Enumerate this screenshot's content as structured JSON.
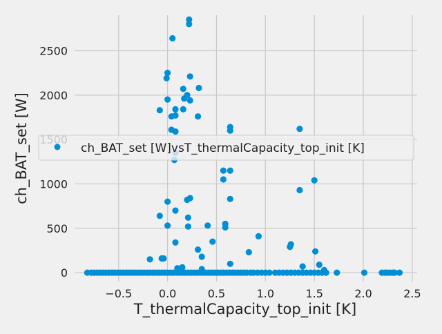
{
  "chart_data": {
    "type": "scatter",
    "xlabel": "T_thermalCapacity_top_init [K]",
    "ylabel": "ch_BAT_set [W]",
    "xlim": [
      -0.95,
      2.55
    ],
    "ylim": [
      -100,
      2900
    ],
    "xticks": [
      -0.5,
      0.0,
      0.5,
      1.0,
      1.5,
      2.0,
      2.5
    ],
    "xtick_labels": [
      "−0.5",
      "0.0",
      "0.5",
      "1.0",
      "1.5",
      "2.0",
      "2.5"
    ],
    "yticks": [
      0,
      500,
      1000,
      1500,
      2000,
      2500
    ],
    "ytick_labels": [
      "0",
      "500",
      "1000",
      "1500",
      "2000",
      "2500"
    ],
    "grid": true,
    "legend_position": "center-right",
    "colors": {
      "marker": "#008fd5",
      "grid": "#cbcbcb",
      "background": "#f0f0f0"
    },
    "series": [
      {
        "name": "ch_BAT_set [W]vsT_thermalCapacity_top_init [K]",
        "points": [
          [
            -0.82,
            0
          ],
          [
            -0.78,
            0
          ],
          [
            -0.75,
            0
          ],
          [
            -0.72,
            0
          ],
          [
            -0.69,
            0
          ],
          [
            -0.66,
            0
          ],
          [
            -0.63,
            0
          ],
          [
            -0.6,
            0
          ],
          [
            -0.57,
            0
          ],
          [
            -0.54,
            0
          ],
          [
            -0.51,
            0
          ],
          [
            -0.48,
            0
          ],
          [
            -0.45,
            0
          ],
          [
            -0.42,
            0
          ],
          [
            -0.39,
            0
          ],
          [
            -0.36,
            0
          ],
          [
            -0.33,
            0
          ],
          [
            -0.3,
            0
          ],
          [
            -0.27,
            0
          ],
          [
            -0.24,
            0
          ],
          [
            -0.21,
            0
          ],
          [
            -0.18,
            0
          ],
          [
            -0.15,
            0
          ],
          [
            -0.12,
            0
          ],
          [
            -0.09,
            0
          ],
          [
            -0.06,
            0
          ],
          [
            -0.03,
            0
          ],
          [
            0.0,
            0
          ],
          [
            0.03,
            0
          ],
          [
            0.06,
            0
          ],
          [
            0.09,
            0
          ],
          [
            0.12,
            0
          ],
          [
            0.15,
            0
          ],
          [
            0.18,
            0
          ],
          [
            0.21,
            0
          ],
          [
            0.24,
            0
          ],
          [
            0.27,
            0
          ],
          [
            0.3,
            0
          ],
          [
            0.33,
            0
          ],
          [
            0.36,
            0
          ],
          [
            0.39,
            0
          ],
          [
            0.42,
            0
          ],
          [
            0.45,
            0
          ],
          [
            0.48,
            0
          ],
          [
            0.51,
            0
          ],
          [
            0.54,
            0
          ],
          [
            0.57,
            0
          ],
          [
            0.6,
            0
          ],
          [
            0.63,
            0
          ],
          [
            0.66,
            0
          ],
          [
            0.69,
            0
          ],
          [
            0.72,
            0
          ],
          [
            0.75,
            0
          ],
          [
            0.78,
            0
          ],
          [
            0.81,
            0
          ],
          [
            0.85,
            0
          ],
          [
            0.88,
            0
          ],
          [
            0.92,
            0
          ],
          [
            0.96,
            0
          ],
          [
            1.0,
            0
          ],
          [
            1.04,
            0
          ],
          [
            1.1,
            0
          ],
          [
            1.14,
            0
          ],
          [
            1.18,
            0
          ],
          [
            1.22,
            0
          ],
          [
            1.26,
            0
          ],
          [
            1.3,
            0
          ],
          [
            1.34,
            0
          ],
          [
            1.38,
            0
          ],
          [
            1.42,
            0
          ],
          [
            1.46,
            0
          ],
          [
            1.5,
            0
          ],
          [
            1.54,
            0
          ],
          [
            1.58,
            0
          ],
          [
            1.62,
            0
          ],
          [
            1.73,
            0
          ],
          [
            2.01,
            0
          ],
          [
            2.19,
            0
          ],
          [
            2.22,
            0
          ],
          [
            2.24,
            0
          ],
          [
            2.27,
            0
          ],
          [
            2.3,
            0
          ],
          [
            2.32,
            0
          ],
          [
            2.37,
            0
          ],
          [
            -0.18,
            150
          ],
          [
            -0.06,
            160
          ],
          [
            -0.04,
            160
          ],
          [
            0.1,
            50
          ],
          [
            0.15,
            60
          ],
          [
            0.35,
            40
          ],
          [
            0.64,
            100
          ],
          [
            1.38,
            70
          ],
          [
            1.55,
            90
          ],
          [
            1.6,
            30
          ],
          [
            -0.08,
            640
          ],
          [
            0.0,
            530
          ],
          [
            0.0,
            800
          ],
          [
            0.08,
            700
          ],
          [
            0.08,
            340
          ],
          [
            0.2,
            820
          ],
          [
            0.21,
            520
          ],
          [
            0.21,
            620
          ],
          [
            0.23,
            840
          ],
          [
            0.31,
            260
          ],
          [
            0.35,
            180
          ],
          [
            0.41,
            530
          ],
          [
            0.46,
            350
          ],
          [
            0.59,
            550
          ],
          [
            0.59,
            510
          ],
          [
            0.64,
            830
          ],
          [
            0.83,
            230
          ],
          [
            0.93,
            410
          ],
          [
            1.25,
            290
          ],
          [
            1.26,
            320
          ],
          [
            1.35,
            930
          ],
          [
            1.51,
            240
          ],
          [
            0.57,
            1050
          ],
          [
            0.57,
            1150
          ],
          [
            0.64,
            1150
          ],
          [
            0.64,
            1600
          ],
          [
            0.64,
            1640
          ],
          [
            1.35,
            1620
          ],
          [
            1.5,
            1040
          ],
          [
            0.07,
            1270
          ],
          [
            0.08,
            1350
          ],
          [
            0.04,
            1610
          ],
          [
            0.08,
            1590
          ],
          [
            -0.08,
            1830
          ],
          [
            0.0,
            1950
          ],
          [
            0.04,
            1760
          ],
          [
            0.08,
            1770
          ],
          [
            0.08,
            1840
          ],
          [
            0.16,
            1840
          ],
          [
            0.17,
            1960
          ],
          [
            0.16,
            2070
          ],
          [
            0.2,
            2000
          ],
          [
            0.23,
            1940
          ],
          [
            0.31,
            1760
          ],
          [
            0.32,
            2080
          ],
          [
            -0.01,
            2190
          ],
          [
            0.0,
            2250
          ],
          [
            0.23,
            2210
          ],
          [
            0.05,
            2640
          ],
          [
            0.22,
            2800
          ],
          [
            0.22,
            2850
          ]
        ]
      }
    ]
  }
}
